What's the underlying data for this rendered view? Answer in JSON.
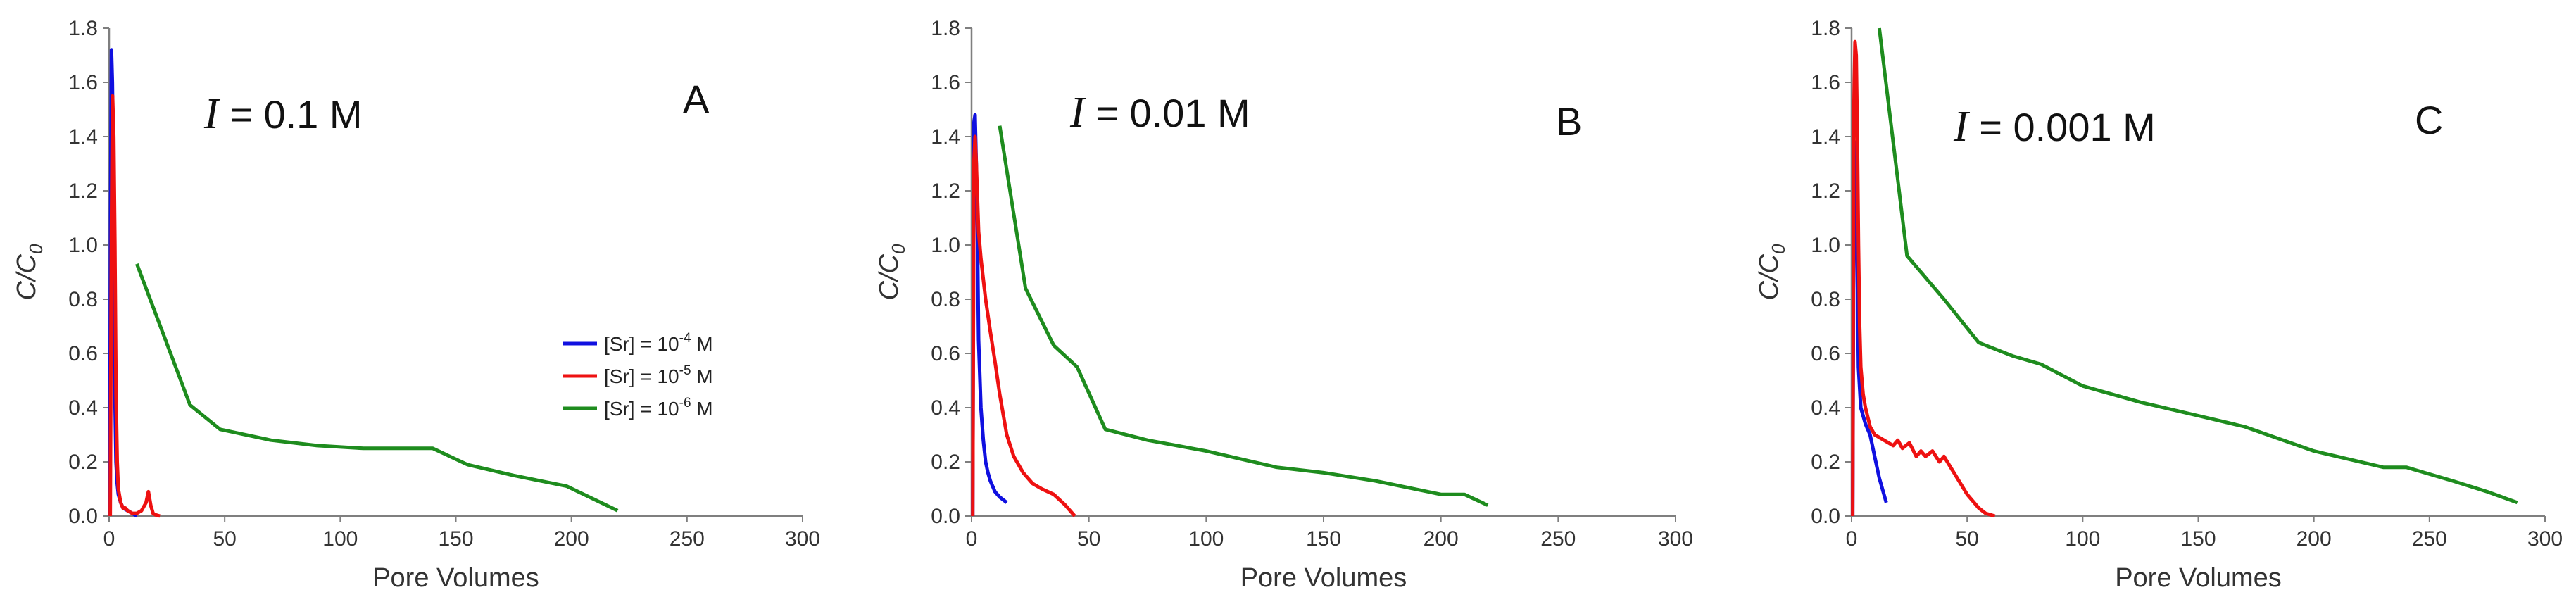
{
  "colors": {
    "blue": "#1010e0",
    "red": "#ee1111",
    "green": "#1e8c1e",
    "axis": "#7f7f7f"
  },
  "chart_data": [
    {
      "type": "line",
      "panel_label": "A",
      "ionic_strength": {
        "symbol": "I",
        "text": " = 0.1 M"
      },
      "xlabel": "Pore Volumes",
      "ylabel": "C/C0",
      "xlim": [
        0,
        300
      ],
      "ylim": [
        0,
        1.8
      ],
      "xticks": [
        "0",
        "50",
        "100",
        "150",
        "200",
        "250",
        "300"
      ],
      "yticks": [
        "0.0",
        "0.2",
        "0.4",
        "0.6",
        "0.8",
        "1.0",
        "1.2",
        "1.4",
        "1.6",
        "1.8"
      ],
      "legend_position": "center-right",
      "series": [
        {
          "name": "[Sr] = 10-4 M",
          "name_base": "[Sr] = 10",
          "name_exp": "-4",
          "name_unit": " M",
          "color": "blue",
          "x": [
            0.3,
            0.6,
            1.0,
            1.4,
            1.8,
            2.2,
            2.6,
            3.0,
            3.5,
            4,
            5,
            6,
            8,
            10,
            12
          ],
          "y": [
            0.0,
            1.1,
            1.72,
            1.6,
            1.3,
            0.9,
            0.4,
            0.2,
            0.12,
            0.08,
            0.05,
            0.03,
            0.02,
            0.01,
            0.0
          ]
        },
        {
          "name": "[Sr] = 10-5 M",
          "name_base": "[Sr] = 10",
          "name_exp": "-5",
          "name_unit": " M",
          "color": "red",
          "x": [
            0.5,
            1.0,
            1.5,
            2.0,
            2.5,
            3.0,
            3.5,
            4,
            5,
            6,
            7,
            8,
            10,
            12,
            14,
            16,
            17,
            18,
            19,
            20,
            22
          ],
          "y": [
            0.0,
            1.05,
            1.55,
            1.4,
            1.0,
            0.45,
            0.2,
            0.1,
            0.05,
            0.03,
            0.03,
            0.02,
            0.01,
            0.01,
            0.02,
            0.05,
            0.09,
            0.04,
            0.01,
            0.005,
            0.0
          ]
        },
        {
          "name": "[Sr] = 10-6 M",
          "name_base": "[Sr] = 10",
          "name_exp": "-6",
          "name_unit": " M",
          "color": "green",
          "x": [
            12,
            35,
            48,
            70,
            90,
            110,
            140,
            155,
            175,
            198,
            220
          ],
          "y": [
            0.93,
            0.41,
            0.32,
            0.28,
            0.26,
            0.25,
            0.25,
            0.19,
            0.15,
            0.11,
            0.02
          ]
        }
      ]
    },
    {
      "type": "line",
      "panel_label": "B",
      "ionic_strength": {
        "symbol": "I",
        "text": " = 0.01 M"
      },
      "xlabel": "Pore Volumes",
      "ylabel": "C/C0",
      "xlim": [
        0,
        300
      ],
      "ylim": [
        0,
        1.8
      ],
      "xticks": [
        "0",
        "50",
        "100",
        "150",
        "200",
        "250",
        "300"
      ],
      "yticks": [
        "0.0",
        "0.2",
        "0.4",
        "0.6",
        "0.8",
        "1.0",
        "1.2",
        "1.4",
        "1.6",
        "1.8"
      ],
      "series": [
        {
          "name": "[Sr] = 10-4 M",
          "color": "blue",
          "x": [
            0.5,
            1.0,
            1.5,
            2.0,
            2.5,
            3.0,
            4,
            5,
            6,
            7,
            8,
            10,
            12,
            15
          ],
          "y": [
            0.0,
            1.45,
            1.48,
            1.3,
            1.05,
            0.65,
            0.4,
            0.28,
            0.2,
            0.16,
            0.13,
            0.09,
            0.07,
            0.05
          ]
        },
        {
          "name": "[Sr] = 10-5 M",
          "color": "red",
          "x": [
            0.5,
            1.0,
            1.5,
            2.0,
            3,
            4,
            6,
            8,
            10,
            12,
            15,
            18,
            22,
            26,
            30,
            35,
            40,
            44
          ],
          "y": [
            0.0,
            1.3,
            1.4,
            1.3,
            1.05,
            0.95,
            0.8,
            0.68,
            0.57,
            0.45,
            0.3,
            0.22,
            0.16,
            0.12,
            0.1,
            0.08,
            0.04,
            0.0
          ]
        },
        {
          "name": "[Sr] = 10-6 M",
          "color": "green",
          "x": [
            12,
            23,
            35,
            45,
            57,
            75,
            100,
            130,
            150,
            172,
            200,
            210,
            220
          ],
          "y": [
            1.44,
            0.84,
            0.63,
            0.55,
            0.32,
            0.28,
            0.24,
            0.18,
            0.16,
            0.13,
            0.08,
            0.08,
            0.04
          ]
        }
      ]
    },
    {
      "type": "line",
      "panel_label": "C",
      "ionic_strength": {
        "symbol": "I",
        "text": " = 0.001 M"
      },
      "xlabel": "Pore Volumes",
      "ylabel": "C/C0",
      "xlim": [
        0,
        300
      ],
      "ylim": [
        0,
        1.8
      ],
      "xticks": [
        "0",
        "50",
        "100",
        "150",
        "200",
        "250",
        "300"
      ],
      "yticks": [
        "0.0",
        "0.2",
        "0.4",
        "0.6",
        "0.8",
        "1.0",
        "1.2",
        "1.4",
        "1.6",
        "1.8"
      ],
      "series": [
        {
          "name": "[Sr] = 10-4 M",
          "color": "blue",
          "x": [
            0.5,
            1.0,
            1.5,
            2.0,
            2.5,
            3.0,
            4,
            5,
            6,
            8,
            10,
            12,
            15
          ],
          "y": [
            0.0,
            1.2,
            1.38,
            1.2,
            0.9,
            0.55,
            0.4,
            0.37,
            0.34,
            0.3,
            0.22,
            0.14,
            0.05
          ]
        },
        {
          "name": "[Sr] = 10-5 M",
          "color": "red",
          "x": [
            0.5,
            1.0,
            1.5,
            2.0,
            2.5,
            3.0,
            3.5,
            4,
            5,
            6,
            8,
            10,
            14,
            18,
            20,
            22,
            25,
            28,
            30,
            32,
            35,
            38,
            40,
            45,
            50,
            55,
            58,
            62
          ],
          "y": [
            0.0,
            1.5,
            1.75,
            1.7,
            1.4,
            1.0,
            0.7,
            0.55,
            0.45,
            0.4,
            0.33,
            0.3,
            0.28,
            0.26,
            0.28,
            0.25,
            0.27,
            0.22,
            0.24,
            0.22,
            0.24,
            0.2,
            0.22,
            0.15,
            0.08,
            0.03,
            0.01,
            0.0
          ]
        },
        {
          "name": "[Sr] = 10-6 M",
          "color": "green",
          "x": [
            12,
            24,
            40,
            55,
            70,
            82,
            100,
            125,
            150,
            170,
            200,
            230,
            240,
            260,
            275,
            288
          ],
          "y": [
            1.8,
            0.96,
            0.8,
            0.64,
            0.59,
            0.56,
            0.48,
            0.42,
            0.37,
            0.33,
            0.24,
            0.18,
            0.18,
            0.13,
            0.09,
            0.05
          ]
        }
      ]
    }
  ]
}
